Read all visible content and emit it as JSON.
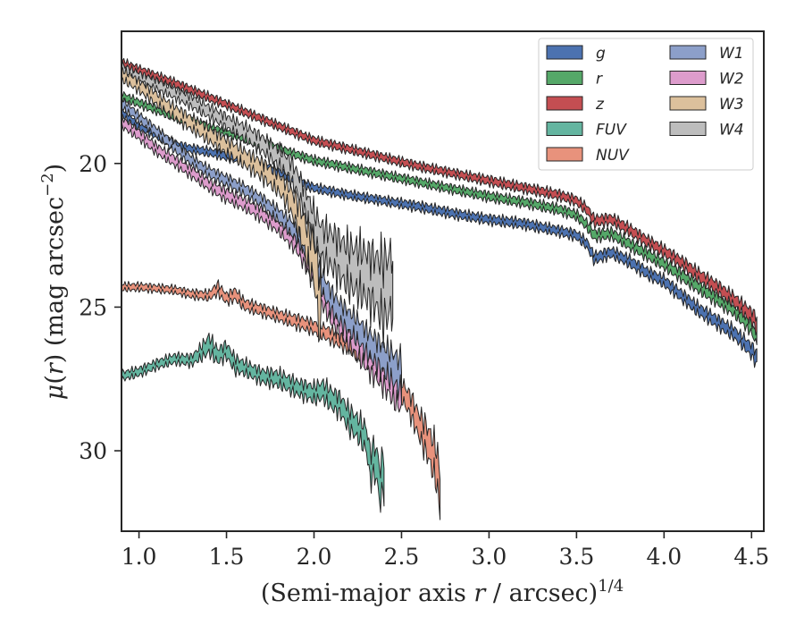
{
  "chart_data": {
    "type": "area",
    "xlabel": "(Semi-major axis r / arcsec)",
    "xlabel_italic_var": "r",
    "xlabel_sup": "1/4",
    "ylabel": "μ(r) (mag arcsec",
    "ylabel_sup": "−2",
    "xlim": [
      0.9,
      4.57
    ],
    "ylim": [
      32.8,
      15.4
    ],
    "y_inverted": true,
    "xticks": [
      1.0,
      1.5,
      2.0,
      2.5,
      3.0,
      3.5,
      4.0,
      4.5
    ],
    "xtick_labels": [
      "1.0",
      "1.5",
      "2.0",
      "2.5",
      "3.0",
      "3.5",
      "4.0",
      "4.5"
    ],
    "yticks": [
      20,
      25,
      30
    ],
    "ytick_labels": [
      "20",
      "25",
      "30"
    ],
    "grid": false,
    "legend_position": "top-right",
    "legend_columns": 2,
    "series": [
      {
        "name": "g",
        "color": "#4c72b0",
        "x": [
          0.9,
          1.0,
          1.1,
          1.2,
          1.3,
          1.4,
          1.5,
          1.6,
          1.7,
          1.8,
          1.9,
          2.0,
          2.2,
          2.4,
          2.6,
          2.8,
          3.0,
          3.2,
          3.4,
          3.5,
          3.56,
          3.6,
          3.7,
          3.8,
          3.9,
          4.0,
          4.1,
          4.2,
          4.3,
          4.4,
          4.5,
          4.53
        ],
        "y": [
          18.2,
          18.7,
          19.0,
          19.35,
          19.5,
          19.6,
          19.75,
          19.9,
          20.05,
          20.3,
          20.6,
          20.85,
          21.1,
          21.3,
          21.5,
          21.75,
          21.95,
          22.1,
          22.35,
          22.5,
          22.8,
          23.3,
          23.1,
          23.4,
          23.8,
          24.1,
          24.6,
          25.1,
          25.5,
          25.9,
          26.5,
          26.8
        ],
        "w": [
          0.22,
          0.22,
          0.22,
          0.22,
          0.22,
          0.22,
          0.22,
          0.22,
          0.22,
          0.22,
          0.22,
          0.22,
          0.22,
          0.22,
          0.24,
          0.24,
          0.24,
          0.25,
          0.25,
          0.26,
          0.27,
          0.3,
          0.28,
          0.3,
          0.3,
          0.3,
          0.32,
          0.34,
          0.35,
          0.36,
          0.4,
          0.45
        ]
      },
      {
        "name": "r",
        "color": "#55a868",
        "x": [
          0.9,
          1.0,
          1.2,
          1.4,
          1.6,
          1.8,
          2.0,
          2.2,
          2.4,
          2.6,
          2.8,
          3.0,
          3.2,
          3.4,
          3.5,
          3.56,
          3.6,
          3.7,
          3.8,
          3.9,
          4.0,
          4.1,
          4.2,
          4.3,
          4.4,
          4.5,
          4.53
        ],
        "y": [
          17.65,
          17.9,
          18.35,
          18.75,
          19.1,
          19.5,
          19.9,
          20.15,
          20.4,
          20.65,
          20.9,
          21.15,
          21.35,
          21.6,
          21.8,
          22.15,
          22.5,
          22.45,
          22.8,
          23.15,
          23.5,
          23.9,
          24.3,
          24.7,
          25.1,
          25.7,
          26.1
        ],
        "w": [
          0.22,
          0.22,
          0.22,
          0.22,
          0.22,
          0.22,
          0.22,
          0.22,
          0.22,
          0.22,
          0.22,
          0.24,
          0.24,
          0.25,
          0.25,
          0.27,
          0.3,
          0.28,
          0.3,
          0.3,
          0.3,
          0.32,
          0.34,
          0.35,
          0.36,
          0.4,
          0.45
        ]
      },
      {
        "name": "z",
        "color": "#c44e52",
        "x": [
          0.9,
          1.0,
          1.2,
          1.4,
          1.6,
          1.8,
          2.0,
          2.2,
          2.4,
          2.6,
          2.8,
          3.0,
          3.2,
          3.4,
          3.5,
          3.56,
          3.6,
          3.7,
          3.8,
          3.9,
          4.0,
          4.1,
          4.2,
          4.3,
          4.4,
          4.5,
          4.53
        ],
        "y": [
          16.5,
          16.75,
          17.2,
          17.7,
          18.2,
          18.7,
          19.2,
          19.5,
          19.8,
          20.1,
          20.35,
          20.6,
          20.85,
          21.1,
          21.3,
          21.6,
          22.0,
          21.95,
          22.3,
          22.7,
          23.05,
          23.45,
          23.9,
          24.3,
          24.75,
          25.3,
          25.6
        ],
        "w": [
          0.22,
          0.22,
          0.22,
          0.22,
          0.22,
          0.22,
          0.22,
          0.22,
          0.22,
          0.22,
          0.22,
          0.24,
          0.24,
          0.25,
          0.25,
          0.27,
          0.3,
          0.28,
          0.3,
          0.3,
          0.3,
          0.32,
          0.34,
          0.35,
          0.36,
          0.4,
          0.5
        ]
      },
      {
        "name": "FUV",
        "color": "#64b5a0",
        "x": [
          0.9,
          1.0,
          1.1,
          1.2,
          1.3,
          1.35,
          1.4,
          1.45,
          1.5,
          1.55,
          1.6,
          1.7,
          1.8,
          1.9,
          2.0,
          2.05,
          2.1,
          2.15,
          2.2,
          2.25,
          2.3,
          2.32,
          2.35,
          2.38,
          2.4
        ],
        "y": [
          27.4,
          27.25,
          27.0,
          26.8,
          26.85,
          26.6,
          26.3,
          26.7,
          26.5,
          27.0,
          27.1,
          27.4,
          27.5,
          27.8,
          28.0,
          27.9,
          28.2,
          28.4,
          28.9,
          29.2,
          29.6,
          30.5,
          30.3,
          31.2,
          30.6
        ],
        "w": [
          0.25,
          0.25,
          0.25,
          0.27,
          0.3,
          0.4,
          0.55,
          0.45,
          0.45,
          0.45,
          0.4,
          0.4,
          0.45,
          0.45,
          0.5,
          0.55,
          0.6,
          0.6,
          0.7,
          0.7,
          0.8,
          1.0,
          1.0,
          1.2,
          1.3
        ]
      },
      {
        "name": "NUV",
        "color": "#e8927c",
        "x": [
          0.9,
          1.0,
          1.1,
          1.2,
          1.3,
          1.4,
          1.45,
          1.5,
          1.55,
          1.6,
          1.7,
          1.8,
          1.9,
          2.0,
          2.1,
          2.2,
          2.3,
          2.4,
          2.5,
          2.55,
          2.6,
          2.65,
          2.7,
          2.72
        ],
        "y": [
          24.3,
          24.3,
          24.35,
          24.4,
          24.55,
          24.6,
          24.35,
          24.7,
          24.55,
          24.9,
          25.1,
          25.3,
          25.5,
          25.7,
          26.0,
          26.3,
          26.7,
          27.2,
          27.9,
          28.4,
          29.1,
          29.7,
          30.5,
          31.5
        ],
        "w": [
          0.2,
          0.2,
          0.2,
          0.2,
          0.22,
          0.25,
          0.35,
          0.3,
          0.35,
          0.3,
          0.3,
          0.3,
          0.35,
          0.35,
          0.4,
          0.45,
          0.5,
          0.55,
          0.6,
          0.7,
          0.8,
          1.0,
          1.2,
          1.4
        ]
      },
      {
        "name": "W1",
        "color": "#8c9fc9",
        "x": [
          0.9,
          1.0,
          1.1,
          1.2,
          1.3,
          1.4,
          1.5,
          1.6,
          1.7,
          1.8,
          1.85,
          1.9,
          1.95,
          2.0,
          2.05,
          2.1,
          2.15,
          2.2,
          2.25,
          2.3,
          2.35,
          2.4,
          2.45,
          2.5
        ],
        "y": [
          17.9,
          18.4,
          18.9,
          19.4,
          19.9,
          20.3,
          20.6,
          20.9,
          21.3,
          21.8,
          22.1,
          22.4,
          22.9,
          23.5,
          24.2,
          24.8,
          25.2,
          25.5,
          25.8,
          26.2,
          26.5,
          26.8,
          27.1,
          27.4
        ],
        "w": [
          0.28,
          0.28,
          0.28,
          0.3,
          0.3,
          0.3,
          0.32,
          0.32,
          0.35,
          0.4,
          0.45,
          0.5,
          0.55,
          0.6,
          0.65,
          0.7,
          0.7,
          0.7,
          0.75,
          0.8,
          0.85,
          0.9,
          1.0,
          1.1
        ]
      },
      {
        "name": "W2",
        "color": "#dd9ccc",
        "x": [
          0.9,
          1.0,
          1.1,
          1.2,
          1.3,
          1.4,
          1.5,
          1.6,
          1.7,
          1.8,
          1.85,
          1.9,
          1.95,
          2.0,
          2.05,
          2.1,
          2.15,
          2.2,
          2.25,
          2.3,
          2.35,
          2.4,
          2.45,
          2.5
        ],
        "y": [
          18.55,
          19.0,
          19.5,
          19.9,
          20.3,
          20.75,
          21.1,
          21.4,
          21.75,
          22.2,
          22.5,
          22.8,
          23.3,
          23.9,
          24.6,
          25.2,
          25.6,
          25.95,
          26.3,
          26.7,
          27.0,
          27.3,
          27.7,
          28.0
        ],
        "w": [
          0.3,
          0.3,
          0.3,
          0.3,
          0.32,
          0.32,
          0.35,
          0.35,
          0.38,
          0.4,
          0.45,
          0.5,
          0.55,
          0.6,
          0.65,
          0.7,
          0.7,
          0.75,
          0.8,
          0.85,
          0.9,
          0.95,
          1.0,
          1.1
        ]
      },
      {
        "name": "W3",
        "color": "#dcc09c",
        "x": [
          0.9,
          1.0,
          1.1,
          1.2,
          1.3,
          1.4,
          1.5,
          1.6,
          1.7,
          1.8,
          1.85,
          1.9,
          1.93,
          1.96,
          2.0,
          2.02,
          2.04
        ],
        "y": [
          16.9,
          17.3,
          17.75,
          18.2,
          18.6,
          19.0,
          19.4,
          19.8,
          20.2,
          20.7,
          21.1,
          21.7,
          22.2,
          22.8,
          23.4,
          24.3,
          25.2
        ],
        "w": [
          0.35,
          0.35,
          0.38,
          0.4,
          0.42,
          0.45,
          0.48,
          0.5,
          0.55,
          0.6,
          0.7,
          0.9,
          1.0,
          1.2,
          1.4,
          1.7,
          2.0
        ]
      },
      {
        "name": "W4",
        "color": "#bdbdbd",
        "x": [
          0.9,
          1.0,
          1.1,
          1.2,
          1.3,
          1.4,
          1.5,
          1.6,
          1.7,
          1.8,
          1.85,
          1.9,
          1.95,
          2.0,
          2.05,
          2.1,
          2.15,
          2.2,
          2.25,
          2.3,
          2.35,
          2.4,
          2.45
        ],
        "y": [
          16.7,
          17.0,
          17.25,
          17.55,
          17.85,
          18.2,
          18.55,
          18.9,
          19.3,
          19.8,
          20.1,
          20.6,
          21.3,
          22.2,
          22.8,
          23.0,
          23.3,
          23.6,
          23.7,
          23.9,
          24.1,
          24.4,
          24.1
        ],
        "w": [
          0.3,
          0.3,
          0.3,
          0.32,
          0.35,
          0.38,
          0.4,
          0.45,
          0.5,
          0.55,
          0.6,
          0.7,
          0.8,
          1.0,
          1.1,
          1.2,
          1.3,
          1.4,
          1.5,
          1.6,
          1.7,
          2.1,
          2.0
        ]
      }
    ]
  }
}
